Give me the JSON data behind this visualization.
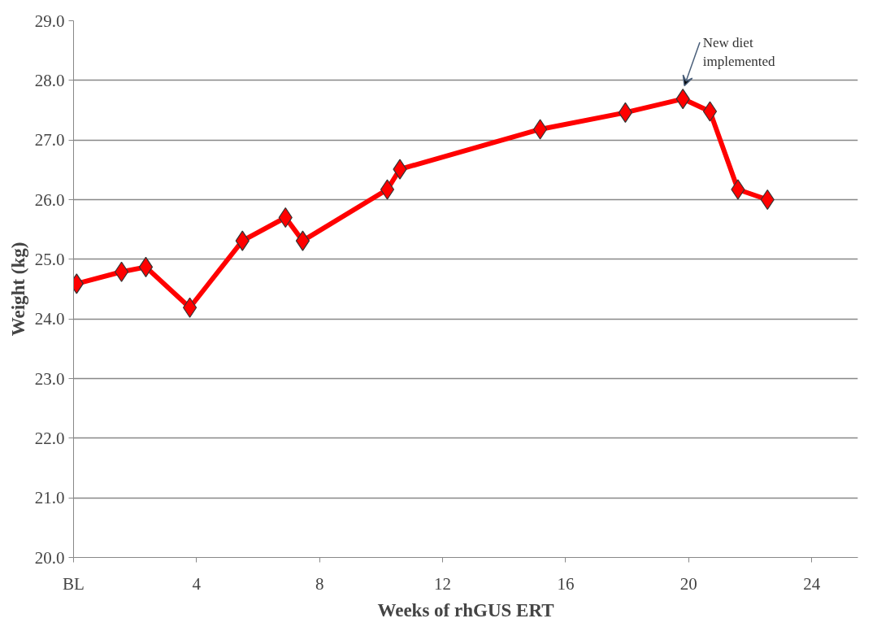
{
  "chart_data": {
    "type": "line",
    "xlabel": "Weeks of rhGUS ERT",
    "ylabel": "Weight (kg)",
    "x": [
      0.1,
      1.56,
      2.35,
      3.78,
      5.49,
      6.89,
      7.45,
      10.2,
      10.61,
      15.17,
      17.94,
      19.81,
      20.69,
      21.6,
      22.56
    ],
    "series": [
      {
        "color": "#ff0000",
        "values": [
          24.59,
          24.79,
          24.87,
          24.19,
          25.31,
          25.7,
          25.31,
          26.17,
          26.51,
          27.18,
          27.46,
          27.69,
          27.48,
          26.17,
          26.0
        ]
      }
    ],
    "xlim": [
      0,
      25.5
    ],
    "ylim": [
      20,
      29
    ],
    "xticks": [
      {
        "value": 0,
        "label": "BL"
      },
      4,
      8,
      12,
      16,
      20,
      24
    ],
    "yticks": [
      {
        "value": 20,
        "label": "20.0"
      },
      {
        "value": 21,
        "label": "21.0"
      },
      {
        "value": 22,
        "label": "22.0"
      },
      {
        "value": 23,
        "label": "23.0"
      },
      {
        "value": 24,
        "label": "24.0"
      },
      {
        "value": 25,
        "label": "25.0"
      },
      {
        "value": 26,
        "label": "26.0"
      },
      {
        "value": 27,
        "label": "27.0"
      },
      {
        "value": 28,
        "label": "28.0"
      },
      {
        "value": 29,
        "label": "29.0"
      }
    ],
    "annotations": [
      {
        "text": "New diet\nimplemented",
        "x": 19.81,
        "y": 27.69
      }
    ],
    "grid": "y",
    "marker": "diamond",
    "line_style": "solid"
  }
}
